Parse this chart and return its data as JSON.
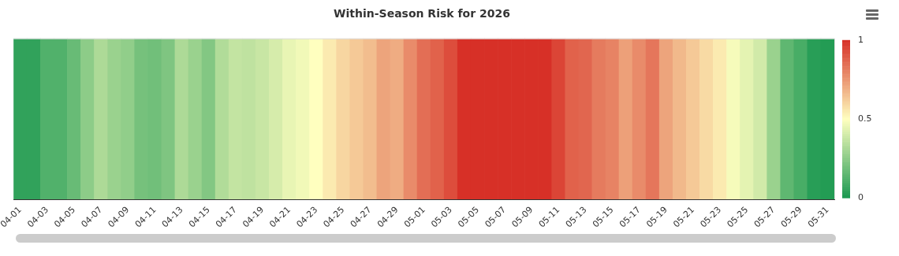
{
  "chart_data": {
    "type": "heatmap",
    "title": "Within-Season Risk for 2026",
    "categories": [
      "04-01",
      null,
      "04-03",
      null,
      "04-05",
      null,
      "04-07",
      null,
      "04-09",
      null,
      "04-11",
      null,
      "04-13",
      null,
      "04-15",
      null,
      "04-17",
      null,
      "04-19",
      null,
      "04-21",
      null,
      "04-23",
      null,
      "04-25",
      null,
      "04-27",
      null,
      "04-29",
      null,
      "05-01",
      null,
      "05-03",
      null,
      "05-05",
      null,
      "05-07",
      null,
      "05-09",
      null,
      "05-11",
      null,
      "05-13",
      null,
      "05-15",
      null,
      "05-17",
      null,
      "05-19",
      null,
      "05-21",
      null,
      "05-23",
      null,
      "05-25",
      null,
      "05-27",
      null,
      "05-29",
      null,
      "05-31"
    ],
    "y_categories": [
      null
    ],
    "cells": [
      [
        0.05,
        0.05,
        0.12,
        0.12,
        0.17,
        0.25,
        0.32,
        0.28,
        0.26,
        0.2,
        0.19,
        0.22,
        0.32,
        0.28,
        0.23,
        0.33,
        0.37,
        0.36,
        0.38,
        0.41,
        0.45,
        0.47,
        0.5,
        0.55,
        0.6,
        0.63,
        0.66,
        0.72,
        0.7,
        0.78,
        0.85,
        0.88,
        0.93,
        1,
        1,
        1,
        1,
        1,
        1,
        1,
        0.95,
        0.88,
        0.87,
        0.82,
        0.8,
        0.73,
        0.78,
        0.83,
        0.72,
        0.67,
        0.63,
        0.59,
        0.55,
        0.48,
        0.44,
        0.4,
        0.28,
        0.15,
        0.1,
        0.03,
        0.02
      ]
    ],
    "clim": [
      0,
      1
    ],
    "cticks": [
      0,
      0.5,
      1
    ],
    "grid": false,
    "legend": false
  }
}
